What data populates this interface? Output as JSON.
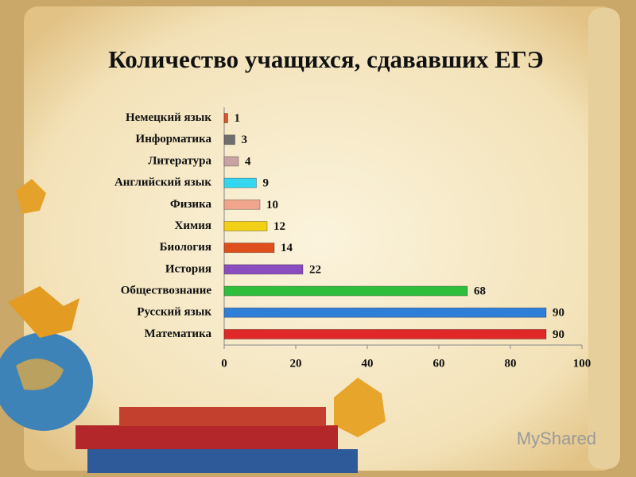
{
  "chart_data": {
    "type": "bar",
    "orientation": "horizontal",
    "title": "Количество учащихся, сдававших ЕГЭ",
    "categories": [
      "Немецкий язык",
      "Информатика",
      "Литература",
      "Английский язык",
      "Физика",
      "Химия",
      "Биология",
      "История",
      "Обществознание",
      "Русский язык",
      "Математика"
    ],
    "values": [
      1,
      3,
      4,
      9,
      10,
      12,
      14,
      22,
      68,
      90,
      90
    ],
    "colors": [
      "#d9542a",
      "#6e6e6e",
      "#c8a3a3",
      "#35d6ef",
      "#f0a58c",
      "#f1d016",
      "#de4f1c",
      "#8a4dc0",
      "#2fbd3c",
      "#2f7ed8",
      "#e02828"
    ],
    "xlim": [
      0,
      100
    ],
    "xticks": [
      0,
      20,
      40,
      60,
      80,
      100
    ],
    "grid": false,
    "watermark": "MyShared"
  }
}
